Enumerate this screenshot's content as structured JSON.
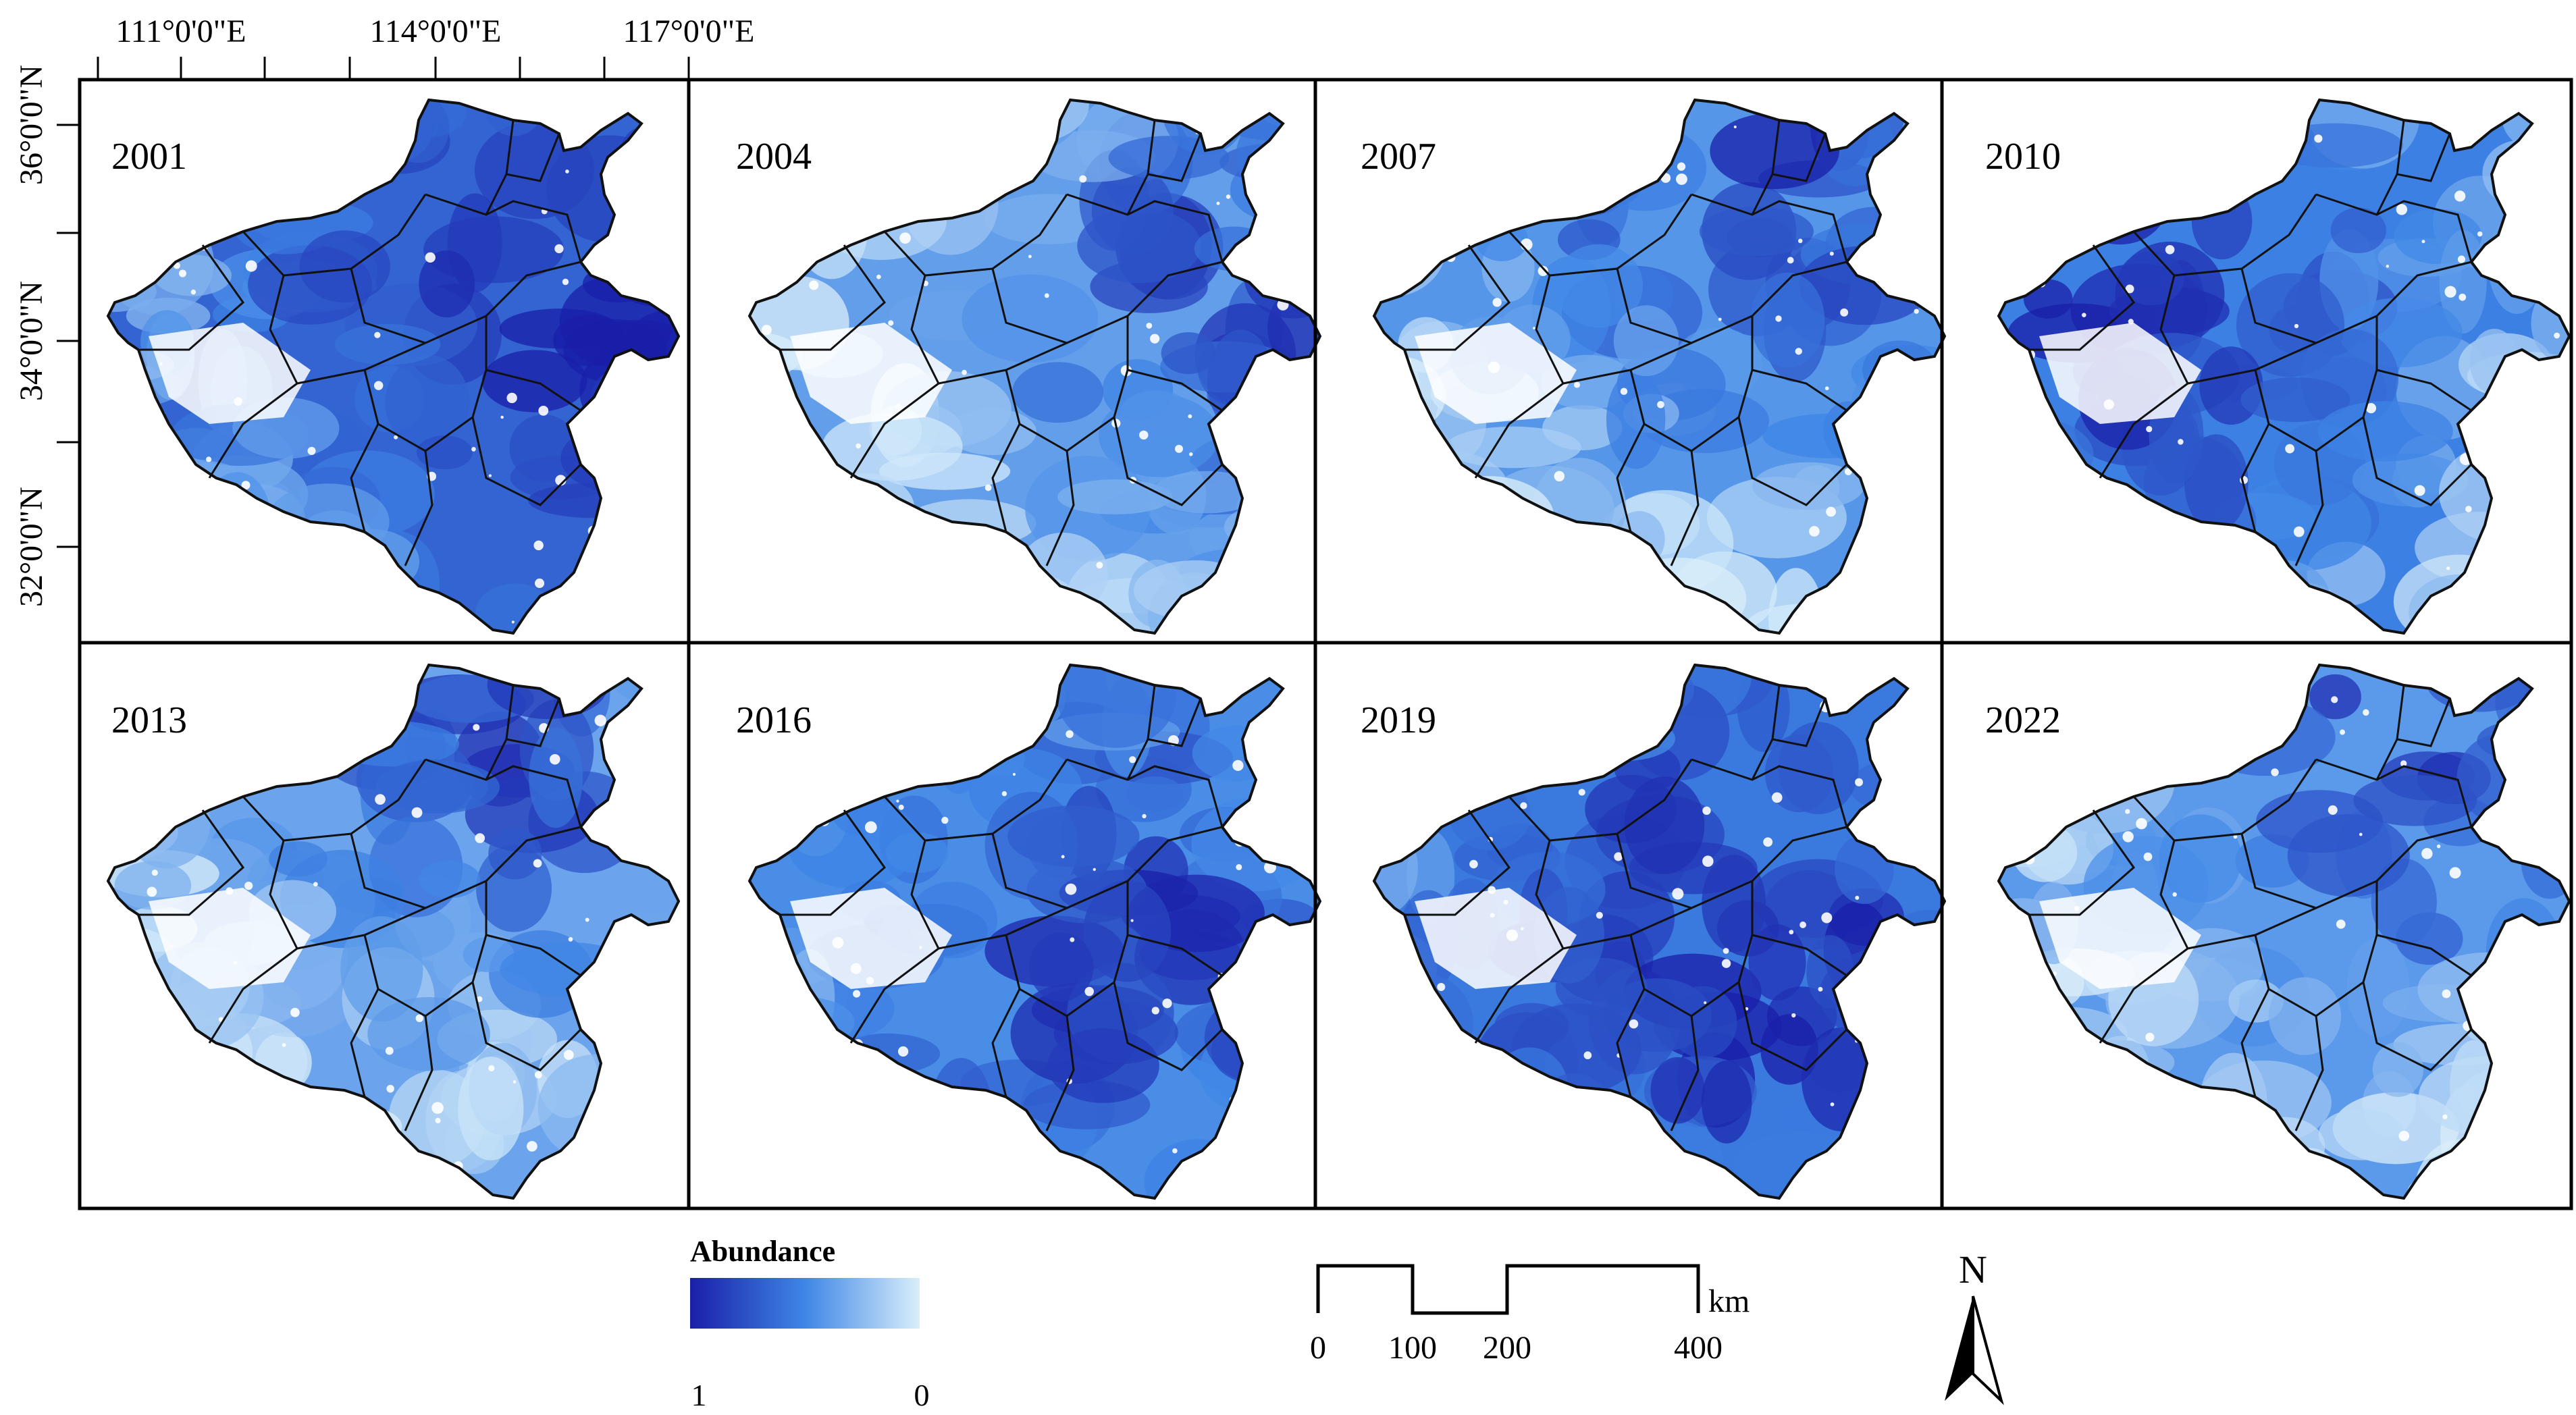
{
  "axes": {
    "longitude_labels": [
      "111°0'0\"E",
      "114°0'0\"E",
      "117°0'0\"E"
    ],
    "latitude_labels": [
      "36°0'0\"N",
      "34°0'0\"N",
      "32°0'0\"N"
    ]
  },
  "panels": [
    {
      "year": "2001",
      "intensity": 0.78,
      "dark_region": "east"
    },
    {
      "year": "2004",
      "intensity": 0.45,
      "dark_region": "east"
    },
    {
      "year": "2007",
      "intensity": 0.5,
      "dark_region": "north"
    },
    {
      "year": "2010",
      "intensity": 0.62,
      "dark_region": "west"
    },
    {
      "year": "2013",
      "intensity": 0.42,
      "dark_region": "north"
    },
    {
      "year": "2016",
      "intensity": 0.55,
      "dark_region": "center"
    },
    {
      "year": "2019",
      "intensity": 0.66,
      "dark_region": "center"
    },
    {
      "year": "2022",
      "intensity": 0.48,
      "dark_region": "north"
    }
  ],
  "legend": {
    "title": "Abundance",
    "min_label": "1",
    "max_label": "0",
    "color_high": "#1a1fa8",
    "color_mid": "#3f86e6",
    "color_low": "#d9eefa"
  },
  "scale_bar": {
    "labels": [
      "0",
      "100",
      "200",
      "400"
    ],
    "unit": "km"
  },
  "north_arrow": {
    "label": "N"
  }
}
